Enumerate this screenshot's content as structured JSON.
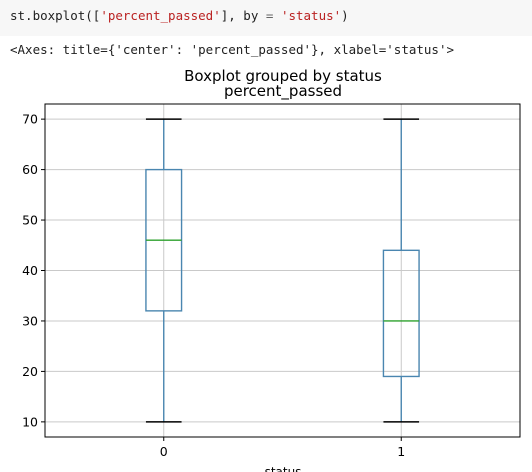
{
  "code_cell": {
    "prefix": "st.boxplot([",
    "arg_col": "'percent_passed'",
    "mid": "], by ",
    "op": "=",
    "space": " ",
    "arg_by": "'status'",
    "suffix": ")"
  },
  "output_text": "<Axes: title={'center': 'percent_passed'}, xlabel='status'>",
  "chart_data": {
    "type": "box",
    "suptitle": "Boxplot grouped by status",
    "title": "percent_passed",
    "xlabel": "status",
    "ylabel": "",
    "categories": [
      "0",
      "1"
    ],
    "ylim": [
      7,
      73
    ],
    "yticks": [
      10,
      20,
      30,
      40,
      50,
      60,
      70
    ],
    "grid": true,
    "boxes": [
      {
        "category": "0",
        "whisker_low": 10,
        "q1": 32,
        "median": 46,
        "q3": 60,
        "whisker_high": 70
      },
      {
        "category": "1",
        "whisker_low": 10,
        "q1": 19,
        "median": 30,
        "q3": 44,
        "whisker_high": 70
      }
    ],
    "colors": {
      "box": "#4a86b0",
      "median": "#2ca02c",
      "grid": "#c9c9c9",
      "axes": "#000000"
    }
  }
}
